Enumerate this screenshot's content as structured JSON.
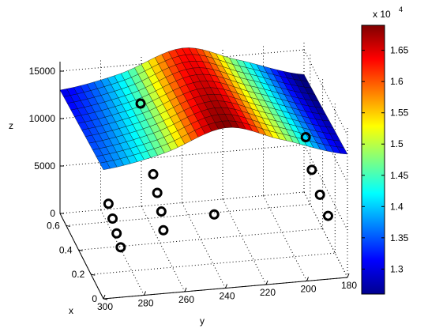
{
  "chart_data": {
    "type": "surface3d",
    "title": "",
    "xlabel": "x",
    "ylabel": "y",
    "zlabel": "z",
    "x_axis": {
      "lim": [
        0,
        0.7
      ],
      "ticks": [
        "0",
        "0.2",
        "0.4",
        "0.6"
      ]
    },
    "y_axis": {
      "lim": [
        180,
        300
      ],
      "ticks": [
        "300",
        "280",
        "260",
        "240",
        "220",
        "200",
        "180"
      ],
      "reversed": true
    },
    "z_axis": {
      "lim": [
        0,
        16000
      ],
      "ticks": [
        "0",
        "5000",
        "10000",
        "15000"
      ]
    },
    "grid": true,
    "colormap": "jet",
    "colorbar": {
      "range": [
        12600,
        16900
      ],
      "ticks": [
        "1.3",
        "1.35",
        "1.4",
        "1.45",
        "1.5",
        "1.55",
        "1.6",
        "1.65"
      ],
      "exponent_label": "x 10",
      "exponent_power": "4"
    },
    "surface": {
      "x_range": [
        0,
        0.7
      ],
      "y_range": [
        180,
        300
      ],
      "nx": 12,
      "ny": 36,
      "y_samples": [
        300,
        270,
        240,
        215,
        180
      ],
      "z_profile": [
        13600,
        14800,
        16900,
        15300,
        13000
      ],
      "x_slope": -600
    },
    "markers": [
      {
        "x": 0.05,
        "y": 296,
        "z": 9300
      },
      {
        "x": 0.05,
        "y": 294,
        "z": 7700
      },
      {
        "x": 0.05,
        "y": 292,
        "z": 6100
      },
      {
        "x": 0.05,
        "y": 290,
        "z": 4600
      },
      {
        "x": 0.05,
        "y": 274,
        "z": 12000
      },
      {
        "x": 0.05,
        "y": 272,
        "z": 10000
      },
      {
        "x": 0.05,
        "y": 270,
        "z": 8000
      },
      {
        "x": 0.05,
        "y": 269,
        "z": 6000
      },
      {
        "x": 0.45,
        "y": 268,
        "z": 14200
      },
      {
        "x": 0.05,
        "y": 244,
        "z": 7200
      },
      {
        "x": 0.05,
        "y": 188,
        "z": 6000
      },
      {
        "x": 0.05,
        "y": 192,
        "z": 8300
      },
      {
        "x": 0.05,
        "y": 196,
        "z": 11000
      },
      {
        "x": 0.05,
        "y": 199,
        "z": 14500
      }
    ]
  }
}
